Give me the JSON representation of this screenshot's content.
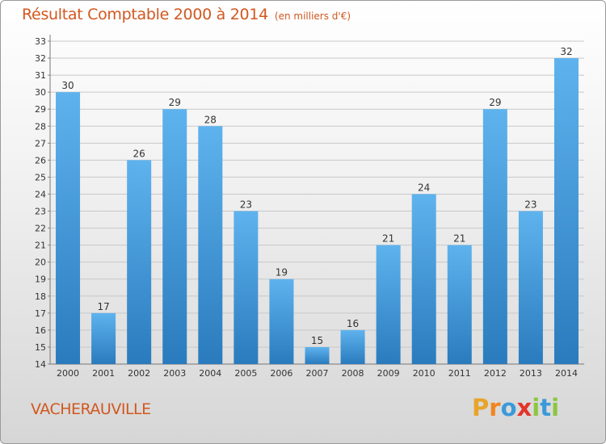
{
  "header": {
    "title": "Résultat Comptable 2000 à 2014",
    "unit": "(en milliers d'€)"
  },
  "footer": {
    "commune": "VACHERAUVILLE",
    "logo_letters": [
      "P",
      "r",
      "o",
      "x",
      "i",
      "t",
      "i"
    ],
    "logo_colors": [
      "#e8a42b",
      "#f2861d",
      "#3a9ad9",
      "#e4342b",
      "#8cc63f",
      "#3a9ad9",
      "#8cc63f"
    ]
  },
  "colors": {
    "bar_light": "#5eb3ee",
    "bar_dark": "#2a7bbd",
    "title": "#d2571f"
  },
  "chart_data": {
    "type": "bar",
    "categories": [
      "2000",
      "2001",
      "2002",
      "2003",
      "2004",
      "2005",
      "2006",
      "2007",
      "2008",
      "2009",
      "2010",
      "2011",
      "2012",
      "2013",
      "2014"
    ],
    "values": [
      30,
      17,
      26,
      29,
      28,
      23,
      19,
      15,
      16,
      21,
      24,
      21,
      29,
      23,
      32
    ],
    "data_labels": [
      "30",
      "17",
      "26",
      "29",
      "28",
      "23",
      "19",
      "15",
      "16",
      "21",
      "24",
      "21",
      "29",
      "23",
      "32"
    ],
    "ylim": [
      14,
      33
    ],
    "yticks": [
      14,
      15,
      16,
      17,
      18,
      19,
      20,
      21,
      22,
      23,
      24,
      25,
      26,
      27,
      28,
      29,
      30,
      31,
      32,
      33
    ],
    "grid": true,
    "title": "Résultat Comptable 2000 à 2014",
    "xlabel": "",
    "ylabel": ""
  }
}
